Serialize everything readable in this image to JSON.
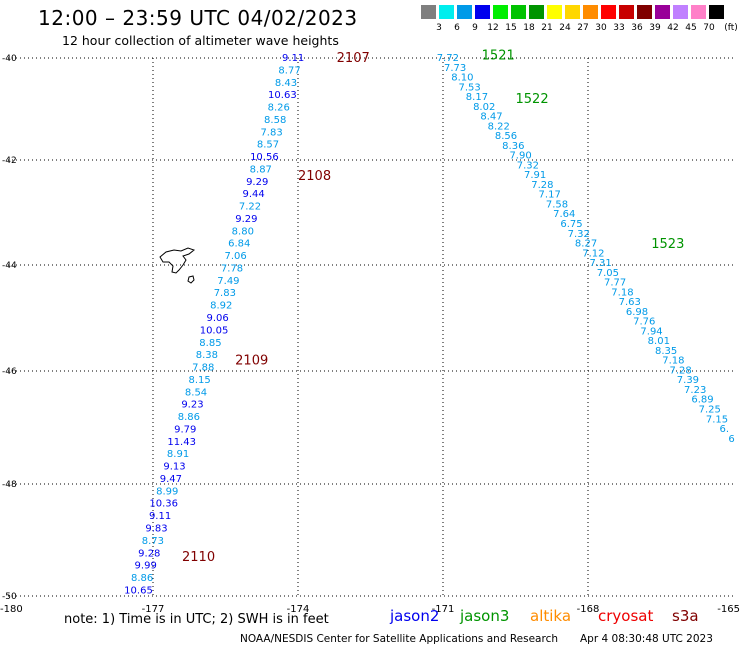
{
  "title": "12:00 – 23:59 UTC 04/02/2023",
  "subtitle": "12 hour collection of altimeter wave heights",
  "legend": {
    "unit": "(ft)",
    "items": [
      {
        "label": "3",
        "color": "#7f7f7f"
      },
      {
        "label": "6",
        "color": "#00eeee"
      },
      {
        "label": "9",
        "color": "#009ae8"
      },
      {
        "label": "12",
        "color": "#0000ee"
      },
      {
        "label": "15",
        "color": "#00ee00"
      },
      {
        "label": "18",
        "color": "#00c300"
      },
      {
        "label": "21",
        "color": "#009400"
      },
      {
        "label": "24",
        "color": "#ffff00"
      },
      {
        "label": "27",
        "color": "#ffd700"
      },
      {
        "label": "30",
        "color": "#ff8c00"
      },
      {
        "label": "33",
        "color": "#ff0000"
      },
      {
        "label": "36",
        "color": "#c80000"
      },
      {
        "label": "39",
        "color": "#800000"
      },
      {
        "label": "42",
        "color": "#990099"
      },
      {
        "label": "45",
        "color": "#c080ff"
      },
      {
        "label": "70",
        "color": "#ff80c8"
      },
      {
        "label": "",
        "color": "#000000"
      }
    ]
  },
  "note": "note:  1) Time is in UTC;  2) SWH is in feet",
  "satellites": [
    {
      "name": "jason2",
      "color": "#0000ee"
    },
    {
      "name": "jason3",
      "color": "#009400"
    },
    {
      "name": "altika",
      "color": "#ff8c00"
    },
    {
      "name": "cryosat",
      "color": "#ee0000"
    },
    {
      "name": "s3a",
      "color": "#800000"
    }
  ],
  "credit": "NOAA/NESDIS Center for Satellite Applications and Research",
  "timestamp": "Apr  4 08:30:48 UTC 2023",
  "chart_data": {
    "type": "scatter",
    "xlim": [
      -180,
      -165
    ],
    "ylim": [
      -50,
      -40
    ],
    "xticks": [
      -180,
      -177,
      -174,
      -171,
      -168,
      -165
    ],
    "yticks": [
      -40,
      -42,
      -44,
      -46,
      -48,
      -50
    ],
    "grid": true,
    "track_west": {
      "values": [
        "9.11",
        "8.77",
        "8.43",
        "10.63",
        "8.26",
        "8.58",
        "7.83",
        "8.57",
        "10.56",
        "8.87",
        "9.29",
        "9.44",
        "7.22",
        "9.29",
        "8.80",
        "6.84",
        "7.06",
        "7.78",
        "7.49",
        "7.83",
        "8.92",
        "9.06",
        "10.05",
        "8.85",
        "8.38",
        "7.88",
        "8.15",
        "8.54",
        "9.23",
        "8.86",
        "9.79",
        "11.43",
        "8.91",
        "9.13",
        "9.47",
        "8.99",
        "10.36",
        "9.11",
        "9.83",
        "8.73",
        "9.28",
        "9.99",
        "8.86",
        "10.65"
      ],
      "colors": [
        "#0000ee",
        "#009ae8",
        "#009ae8",
        "#0000ee",
        "#009ae8",
        "#009ae8",
        "#009ae8",
        "#009ae8",
        "#0000ee",
        "#009ae8",
        "#0000ee",
        "#0000ee",
        "#009ae8",
        "#0000ee",
        "#009ae8",
        "#009ae8",
        "#009ae8",
        "#009ae8",
        "#009ae8",
        "#009ae8",
        "#009ae8",
        "#0000ee",
        "#0000ee",
        "#009ae8",
        "#009ae8",
        "#009ae8",
        "#009ae8",
        "#009ae8",
        "#0000ee",
        "#009ae8",
        "#0000ee",
        "#0000ee",
        "#009ae8",
        "#0000ee",
        "#0000ee",
        "#009ae8",
        "#0000ee",
        "#0000ee",
        "#0000ee",
        "#009ae8",
        "#0000ee",
        "#0000ee",
        "#009ae8",
        "#0000ee"
      ],
      "lon_start": -174.1,
      "lat_start": -40.0,
      "lon_end": -177.3,
      "lat_end": -49.9
    },
    "track_east": {
      "values": [
        "7.72",
        "7.73",
        "8.10",
        "7.53",
        "8.17",
        "8.02",
        "8.47",
        "8.22",
        "8.56",
        "8.36",
        "7.90",
        "7.32",
        "7.91",
        "7.28",
        "7.17",
        "7.58",
        "7.64",
        "6.75",
        "7.32",
        "8.27",
        "7.12",
        "7.31",
        "7.05",
        "7.77",
        "7.18",
        "7.63",
        "6.98",
        "7.76",
        "7.94",
        "8.01",
        "8.35",
        "7.18",
        "7.28",
        "7.39",
        "7.23",
        "6.89",
        "7.25",
        "7.15",
        "6.",
        "6"
      ],
      "color": "#009ae8",
      "lon_start": -170.9,
      "lat_start": -40.0,
      "lon_end": -165.05,
      "lat_end": -47.2
    },
    "pass_labels": [
      {
        "text": "2107",
        "color": "#800000",
        "lon": -173.2,
        "lat": -40.0
      },
      {
        "text": "2108",
        "color": "#800000",
        "lon": -174.0,
        "lat": -42.3
      },
      {
        "text": "2109",
        "color": "#800000",
        "lon": -175.3,
        "lat": -45.8
      },
      {
        "text": "2110",
        "color": "#800000",
        "lon": -176.4,
        "lat": -49.3
      },
      {
        "text": "1521",
        "color": "#009400",
        "lon": -170.2,
        "lat": -39.95
      },
      {
        "text": "1522",
        "color": "#009400",
        "lon": -169.5,
        "lat": -40.8
      },
      {
        "text": "1523",
        "color": "#009400",
        "lon": -166.7,
        "lat": -43.6
      }
    ]
  }
}
